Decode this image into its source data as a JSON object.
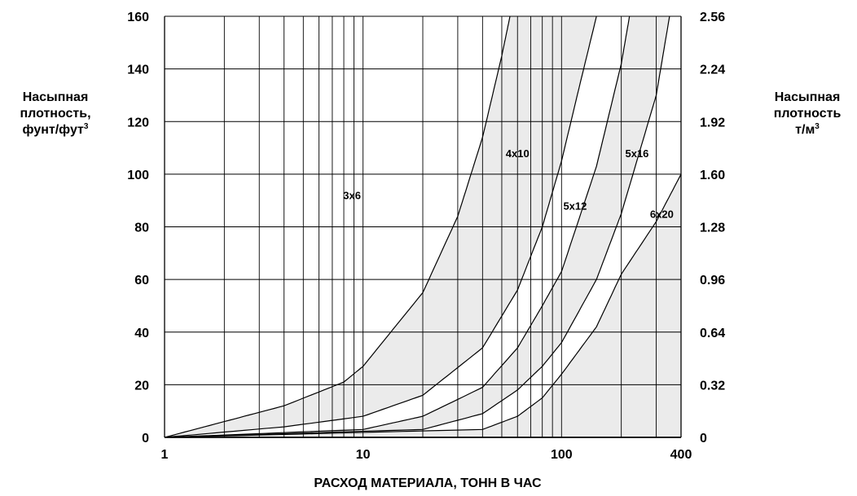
{
  "chart_data": {
    "type": "line",
    "x_scale": "log",
    "xlim": [
      1,
      400
    ],
    "ylim": [
      0,
      160
    ],
    "y2lim": [
      0,
      2.56
    ],
    "grid": true,
    "x_ticks": [
      "1",
      "10",
      "100",
      "400"
    ],
    "y_ticks": [
      "0",
      "20",
      "40",
      "60",
      "80",
      "100",
      "120",
      "140",
      "160"
    ],
    "y2_ticks": [
      "0",
      "0.32",
      "0.64",
      "0.96",
      "1.28",
      "1.60",
      "1.92",
      "2.24",
      "2.56"
    ],
    "xlabel": "РАСХОД МАТЕРИАЛА,  ТОНН В ЧАС",
    "ylabel_left": {
      "line1": "Насыпная",
      "line2": "плотность,",
      "line3": "фунт/фут",
      "sup": "3"
    },
    "ylabel_right": {
      "line1": "Насыпная",
      "line2": "плотность",
      "line3": "т/м",
      "sup": "3"
    },
    "series": [
      {
        "name": "3x6",
        "points": [
          [
            1,
            0
          ],
          [
            2,
            6
          ],
          [
            4,
            12
          ],
          [
            8,
            21
          ],
          [
            10,
            27
          ],
          [
            20,
            55
          ],
          [
            30,
            84
          ],
          [
            40,
            114
          ],
          [
            50,
            145
          ],
          [
            55,
            160
          ]
        ]
      },
      {
        "name": "4x10",
        "points": [
          [
            1,
            0
          ],
          [
            4,
            4
          ],
          [
            10,
            8
          ],
          [
            20,
            16
          ],
          [
            40,
            34
          ],
          [
            60,
            56
          ],
          [
            80,
            80
          ],
          [
            100,
            105
          ],
          [
            120,
            130
          ],
          [
            150,
            160
          ]
        ]
      },
      {
        "name": "5x12",
        "points": [
          [
            1,
            0
          ],
          [
            10,
            3
          ],
          [
            20,
            8
          ],
          [
            40,
            19
          ],
          [
            60,
            34
          ],
          [
            80,
            50
          ],
          [
            100,
            63
          ],
          [
            150,
            103
          ],
          [
            200,
            142
          ],
          [
            220,
            160
          ]
        ]
      },
      {
        "name": "5x16",
        "points": [
          [
            1,
            0
          ],
          [
            20,
            3
          ],
          [
            40,
            9
          ],
          [
            60,
            18
          ],
          [
            80,
            27
          ],
          [
            100,
            36
          ],
          [
            150,
            60
          ],
          [
            200,
            85
          ],
          [
            300,
            130
          ],
          [
            350,
            160
          ]
        ]
      },
      {
        "name": "6x20",
        "points": [
          [
            1,
            0
          ],
          [
            40,
            3
          ],
          [
            60,
            8
          ],
          [
            80,
            15
          ],
          [
            100,
            24
          ],
          [
            150,
            42
          ],
          [
            200,
            62
          ],
          [
            300,
            82
          ],
          [
            400,
            100
          ]
        ]
      }
    ],
    "shaded_bands": [
      [
        "3x6",
        "4x10"
      ],
      [
        "5x12",
        "5x16"
      ],
      [
        "6x20",
        "right-edge"
      ]
    ],
    "series_labels": [
      {
        "name": "3x6",
        "at": [
          8.8,
          92
        ]
      },
      {
        "name": "4x10",
        "at": [
          60,
          108
        ]
      },
      {
        "name": "5x12",
        "at": [
          117,
          88
        ]
      },
      {
        "name": "5x16",
        "at": [
          240,
          108
        ]
      },
      {
        "name": "6x20",
        "at": [
          320,
          85
        ]
      }
    ],
    "colors": {
      "shade": "#ebebeb",
      "line": "#000000",
      "grid": "#000000"
    }
  }
}
